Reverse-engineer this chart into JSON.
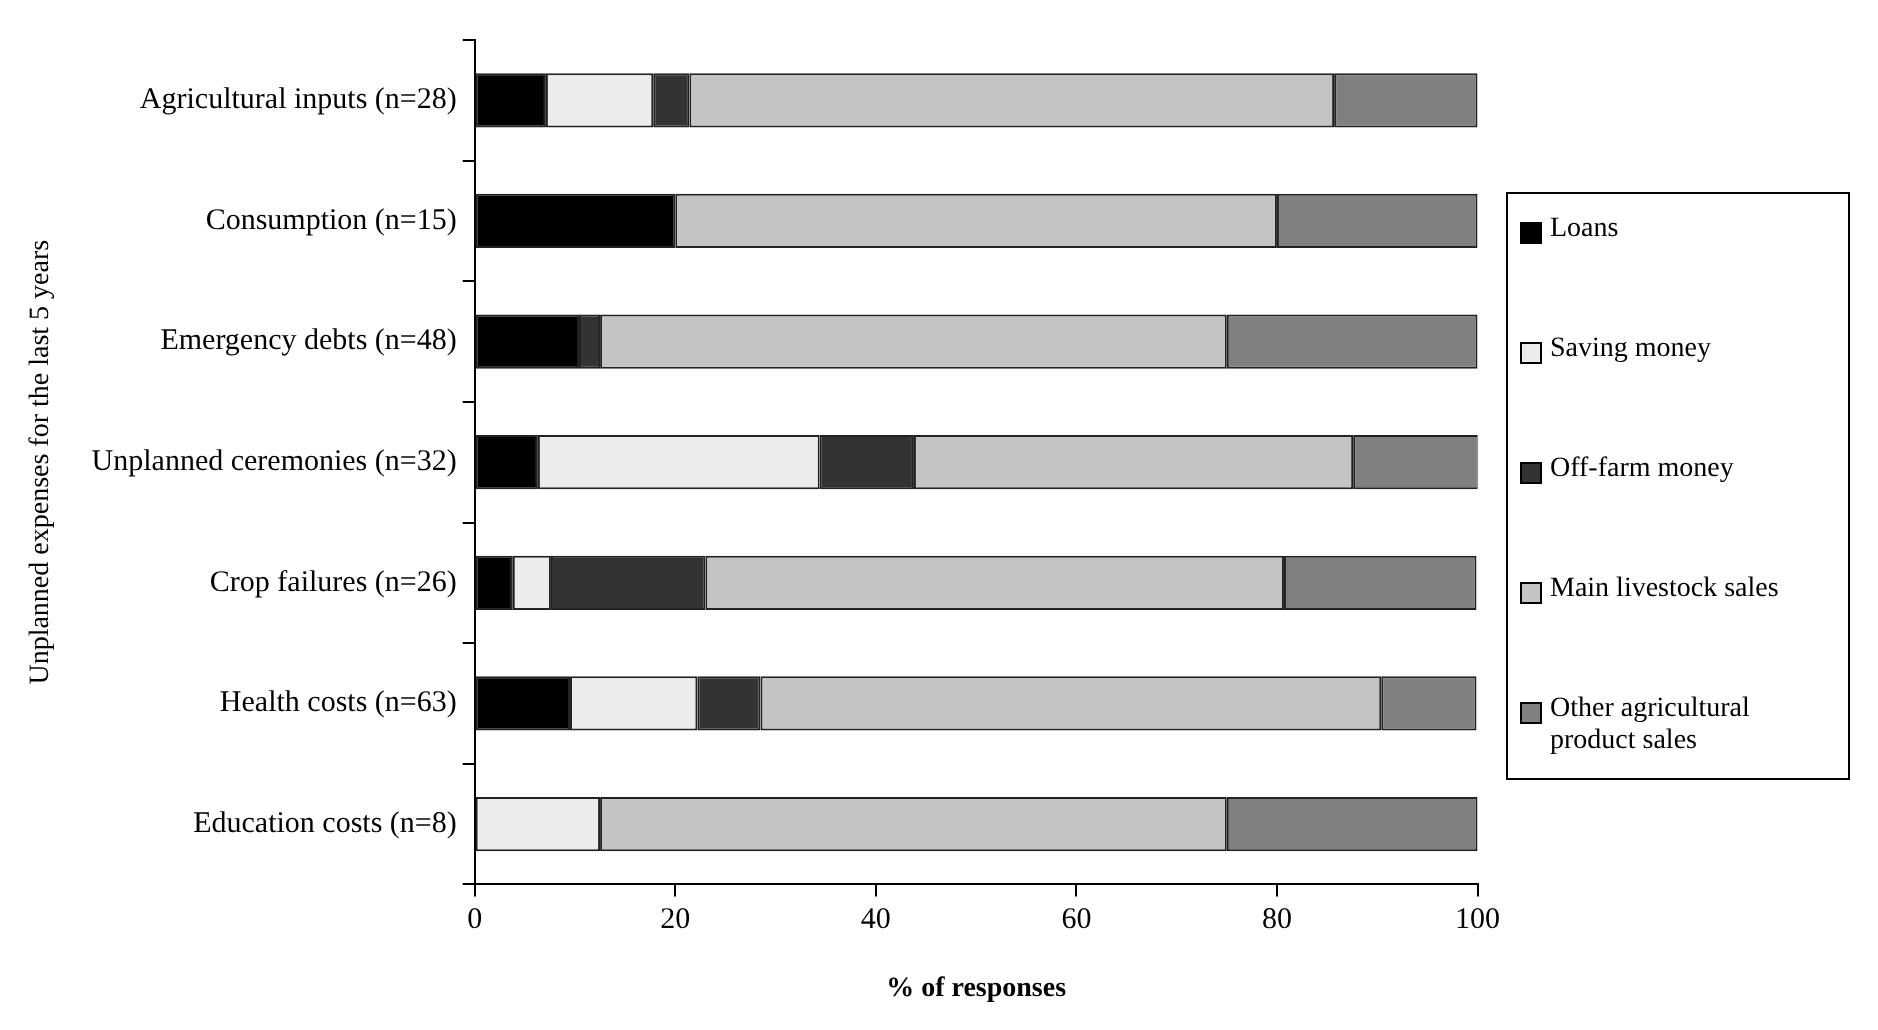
{
  "chart_data": {
    "type": "bar",
    "orientation": "horizontal",
    "stacked": true,
    "xlabel": "% of responses",
    "ylabel": "Unplanned expenses for the last 5 years",
    "categories": [
      "Agricultural inputs (n=28)",
      "Consumption (n=15)",
      "Emergency debts (n=48)",
      "Unplanned ceremonies (n=32)",
      "Crop failures (n=26)",
      "Health costs (n=63)",
      "Education costs (n=8)"
    ],
    "series": [
      {
        "name": "Loans",
        "color": "#000000",
        "values": [
          7.1,
          20,
          10.4,
          6.3,
          3.8,
          9.5,
          0
        ]
      },
      {
        "name": "Saving money",
        "color": "#ececec",
        "values": [
          10.7,
          0,
          0,
          28.1,
          3.8,
          12.7,
          12.5
        ]
      },
      {
        "name": "Off-farm money",
        "color": "#333333",
        "values": [
          3.6,
          0,
          2.1,
          9.4,
          15.4,
          6.3,
          0
        ]
      },
      {
        "name": "Main livestock sales",
        "color": "#c4c4c4",
        "values": [
          64.3,
          60,
          62.5,
          43.8,
          57.7,
          61.9,
          62.5
        ]
      },
      {
        "name": "Other agricultural product sales",
        "color": "#808080",
        "values": [
          14.3,
          20,
          25,
          12.5,
          19.2,
          9.5,
          25
        ]
      }
    ],
    "xlim": [
      0,
      100
    ],
    "xticks": [
      0,
      20,
      40,
      60,
      80,
      100
    ],
    "grid": false,
    "legend": "right"
  }
}
